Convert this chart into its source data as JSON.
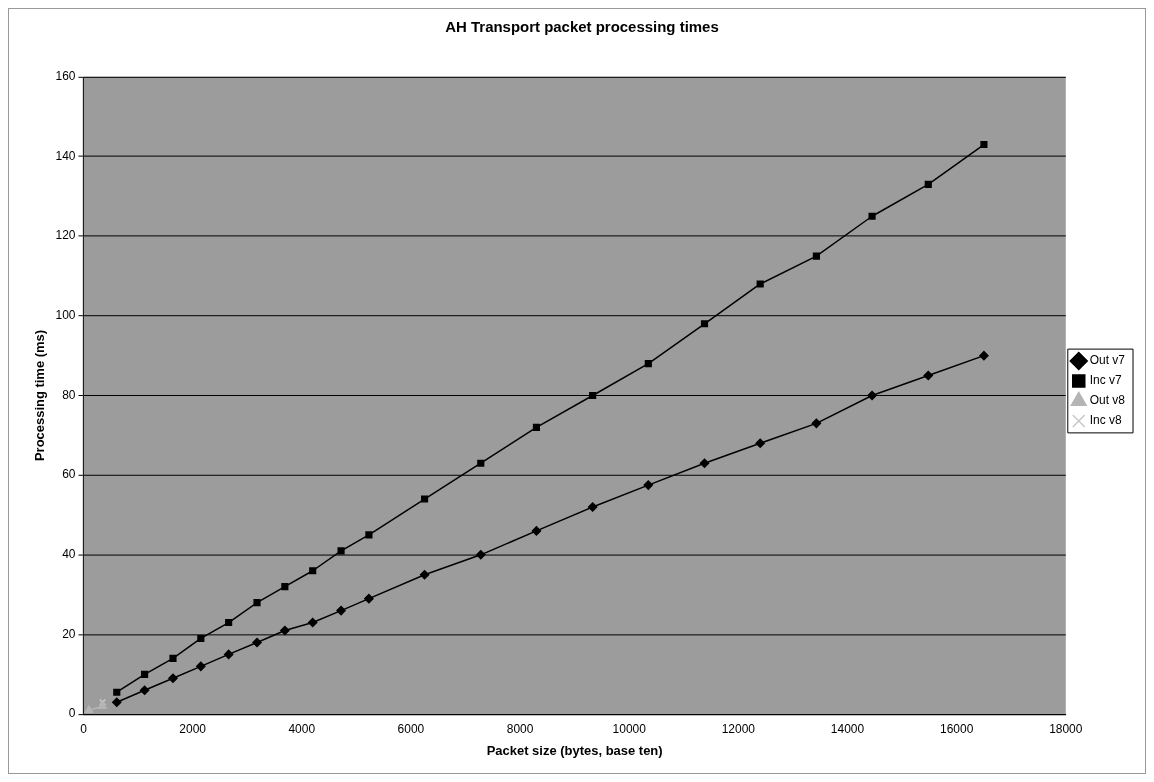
{
  "chart_data": {
    "type": "line",
    "title": "AH Transport packet processing times",
    "xlabel": "Packet size (bytes, base ten)",
    "ylabel": "Processing time (ms)",
    "xlim": [
      0,
      18000
    ],
    "xticks": [
      0,
      2000,
      4000,
      6000,
      8000,
      10000,
      12000,
      14000,
      16000,
      18000
    ],
    "ylim": [
      0,
      160
    ],
    "yticks": [
      0,
      20,
      40,
      60,
      80,
      100,
      120,
      140,
      160
    ],
    "grid": "y",
    "legend": "right",
    "series": [
      {
        "name": "Out v7",
        "color": "#000000",
        "marker": "diamond",
        "x": [
          610,
          1120,
          1640,
          2150,
          2660,
          3180,
          3690,
          4200,
          4720,
          5230,
          6250,
          7280,
          8300,
          9330,
          10350,
          11380,
          12400,
          13430,
          14450,
          15480,
          16500
        ],
        "values": [
          3,
          6,
          9,
          12,
          15,
          18,
          21,
          23,
          26,
          29,
          35,
          40,
          46,
          52,
          57.5,
          63,
          68,
          73,
          80,
          85,
          90
        ]
      },
      {
        "name": "Inc v7",
        "color": "#000000",
        "marker": "square",
        "x": [
          610,
          1120,
          1640,
          2150,
          2660,
          3180,
          3690,
          4200,
          4720,
          5230,
          6250,
          7280,
          8300,
          9330,
          10350,
          11380,
          12400,
          13430,
          14450,
          15480,
          16500
        ],
        "values": [
          5.5,
          10,
          14,
          19,
          23,
          28,
          32,
          36,
          41,
          45,
          54,
          63,
          72,
          80,
          88,
          98,
          108,
          115,
          125,
          133,
          143
        ]
      },
      {
        "name": "Out v8",
        "color": "#b4b4b4",
        "marker": "triangle",
        "x": [
          100,
          350
        ],
        "values": [
          1,
          2
        ]
      },
      {
        "name": "Inc v8",
        "color": "#c8c8c8",
        "marker": "cross",
        "x": [
          350
        ],
        "values": [
          3
        ]
      }
    ]
  }
}
